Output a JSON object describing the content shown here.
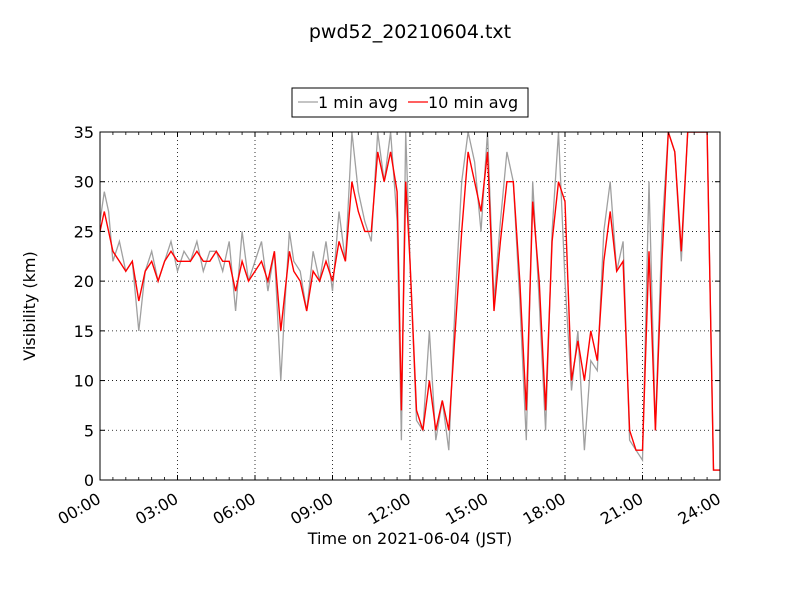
{
  "chart_data": {
    "type": "line",
    "title": "pwd52_20210604.txt",
    "xlabel": "Time on 2021-06-04 (JST)",
    "ylabel": "Visibility (km)",
    "xlim": [
      "00:00",
      "24:00"
    ],
    "ylim": [
      0,
      35
    ],
    "xticks": [
      "00:00",
      "03:00",
      "06:00",
      "09:00",
      "12:00",
      "15:00",
      "18:00",
      "21:00",
      "24:00"
    ],
    "yticks": [
      "0",
      "5",
      "10",
      "15",
      "20",
      "25",
      "30",
      "35"
    ],
    "grid": true,
    "legend_position": "top-center",
    "series": [
      {
        "name": "1 min avg",
        "color": "#a0a0a0",
        "x": [
          "00:00",
          "00:10",
          "00:20",
          "00:30",
          "00:45",
          "01:00",
          "01:15",
          "01:30",
          "01:45",
          "02:00",
          "02:15",
          "02:30",
          "02:45",
          "03:00",
          "03:15",
          "03:30",
          "03:45",
          "04:00",
          "04:15",
          "04:30",
          "04:45",
          "05:00",
          "05:15",
          "05:30",
          "05:45",
          "06:00",
          "06:15",
          "06:30",
          "06:45",
          "07:00",
          "07:10",
          "07:20",
          "07:30",
          "07:45",
          "08:00",
          "08:15",
          "08:30",
          "08:45",
          "09:00",
          "09:15",
          "09:30",
          "09:45",
          "10:00",
          "10:15",
          "10:30",
          "10:45",
          "11:00",
          "11:15",
          "11:30",
          "11:40",
          "11:50",
          "12:00",
          "12:15",
          "12:30",
          "12:45",
          "13:00",
          "13:15",
          "13:30",
          "13:45",
          "14:00",
          "14:15",
          "14:30",
          "14:45",
          "15:00",
          "15:15",
          "15:30",
          "15:45",
          "16:00",
          "16:15",
          "16:30",
          "16:45",
          "17:00",
          "17:15",
          "17:30",
          "17:45",
          "18:00",
          "18:15",
          "18:30",
          "18:45",
          "19:00",
          "19:15",
          "19:30",
          "19:45",
          "20:00",
          "20:15",
          "20:30",
          "20:45",
          "21:00",
          "21:15",
          "21:30",
          "21:45",
          "22:00",
          "22:15",
          "22:30",
          "22:45",
          "23:00",
          "23:15",
          "23:30",
          "23:45",
          "24:00"
        ],
        "values": [
          26,
          29,
          27,
          22,
          24,
          21,
          22,
          15,
          21,
          23,
          20,
          22,
          24,
          21,
          23,
          22,
          24,
          21,
          23,
          23,
          21,
          24,
          17,
          25,
          20,
          22,
          24,
          19,
          23,
          10,
          18,
          25,
          22,
          21,
          17,
          23,
          20,
          24,
          19,
          27,
          22,
          35,
          29,
          26,
          24,
          35,
          30,
          35,
          26,
          4,
          35,
          22,
          6,
          5,
          15,
          4,
          8,
          3,
          18,
          30,
          35,
          32,
          25,
          35,
          18,
          26,
          33,
          30,
          18,
          4,
          30,
          18,
          5,
          25,
          35,
          20,
          9,
          15,
          3,
          12,
          11,
          25,
          30,
          21,
          24,
          4,
          3,
          2,
          30,
          5,
          25,
          35,
          33,
          22,
          35,
          35,
          35,
          35,
          1,
          1
        ]
      },
      {
        "name": "10 min avg",
        "color": "#ff0000",
        "x": [
          "00:00",
          "00:10",
          "00:20",
          "00:30",
          "00:45",
          "01:00",
          "01:15",
          "01:30",
          "01:45",
          "02:00",
          "02:15",
          "02:30",
          "02:45",
          "03:00",
          "03:15",
          "03:30",
          "03:45",
          "04:00",
          "04:15",
          "04:30",
          "04:45",
          "05:00",
          "05:15",
          "05:30",
          "05:45",
          "06:00",
          "06:15",
          "06:30",
          "06:45",
          "07:00",
          "07:10",
          "07:20",
          "07:30",
          "07:45",
          "08:00",
          "08:15",
          "08:30",
          "08:45",
          "09:00",
          "09:15",
          "09:30",
          "09:45",
          "10:00",
          "10:15",
          "10:30",
          "10:45",
          "11:00",
          "11:15",
          "11:30",
          "11:40",
          "11:50",
          "12:00",
          "12:15",
          "12:30",
          "12:45",
          "13:00",
          "13:15",
          "13:30",
          "13:45",
          "14:00",
          "14:15",
          "14:30",
          "14:45",
          "15:00",
          "15:15",
          "15:30",
          "15:45",
          "16:00",
          "16:15",
          "16:30",
          "16:45",
          "17:00",
          "17:15",
          "17:30",
          "17:45",
          "18:00",
          "18:15",
          "18:30",
          "18:45",
          "19:00",
          "19:15",
          "19:30",
          "19:45",
          "20:00",
          "20:15",
          "20:30",
          "20:45",
          "21:00",
          "21:15",
          "21:30",
          "21:45",
          "22:00",
          "22:15",
          "22:30",
          "22:45",
          "23:00",
          "23:15",
          "23:30",
          "23:45",
          "24:00"
        ],
        "values": [
          25,
          27,
          25,
          23,
          22,
          21,
          22,
          18,
          21,
          22,
          20,
          22,
          23,
          22,
          22,
          22,
          23,
          22,
          22,
          23,
          22,
          22,
          19,
          22,
          20,
          21,
          22,
          20,
          23,
          15,
          19,
          23,
          21,
          20,
          17,
          21,
          20,
          22,
          20,
          24,
          22,
          30,
          27,
          25,
          25,
          33,
          30,
          33,
          29,
          7,
          30,
          22,
          7,
          5,
          10,
          5,
          8,
          5,
          15,
          25,
          33,
          30,
          27,
          33,
          17,
          24,
          30,
          30,
          20,
          7,
          28,
          20,
          7,
          24,
          30,
          28,
          10,
          14,
          10,
          15,
          12,
          22,
          27,
          21,
          22,
          5,
          3,
          3,
          23,
          5,
          22,
          35,
          33,
          23,
          35,
          35,
          35,
          35,
          1,
          1
        ]
      }
    ]
  }
}
